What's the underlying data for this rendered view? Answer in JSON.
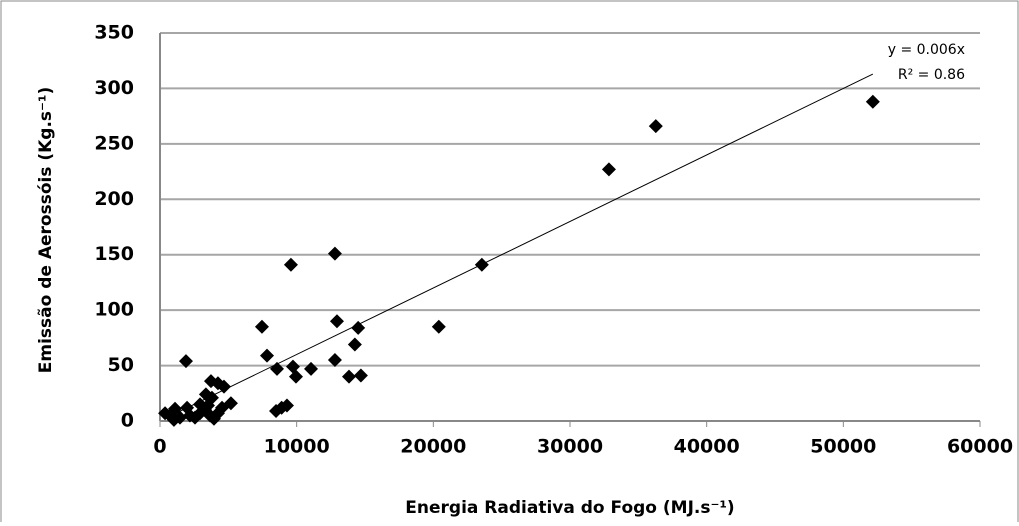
{
  "chart_data": {
    "type": "scatter",
    "x_label": "Energia Radiativa do Fogo (MJ.s⁻¹)",
    "y_label": "Emissão de Aerossóis (Kg.s⁻¹)",
    "x": [
      52160,
      36280,
      32850,
      23550,
      20400,
      12800,
      9580,
      7460,
      7830,
      12950,
      14500,
      12800,
      14260,
      13830,
      14700,
      11050,
      9730,
      8560,
      9950,
      1900,
      8490,
      9290,
      8900,
      3730,
      4240,
      4680,
      5190,
      3360,
      2930,
      3800,
      370,
      730,
      1100,
      1020,
      1460,
      1980,
      2190,
      2560,
      2930,
      3290,
      3660,
      3950,
      4240,
      4540,
      3510
    ],
    "y": [
      288,
      266,
      227,
      141,
      85,
      151,
      141,
      85,
      59,
      90,
      84,
      55,
      69,
      40,
      41,
      47,
      49,
      47,
      40,
      54,
      9,
      14,
      12,
      36,
      34,
      31,
      16,
      24,
      15,
      21,
      7,
      5,
      11,
      1,
      3,
      12,
      5,
      3,
      7,
      10,
      5,
      2,
      7,
      12,
      14
    ],
    "color": "#000000",
    "trendline": {
      "slope": 0.006,
      "equation": "y = 0.006x",
      "r2": "R² = 0.86"
    },
    "xlim": [
      0,
      60000
    ],
    "xticks": [
      0,
      10000,
      20000,
      30000,
      40000,
      50000,
      60000
    ],
    "ylim": [
      0,
      350
    ],
    "yticks": [
      0,
      50,
      100,
      150,
      200,
      250,
      300,
      350
    ],
    "grid": true
  }
}
